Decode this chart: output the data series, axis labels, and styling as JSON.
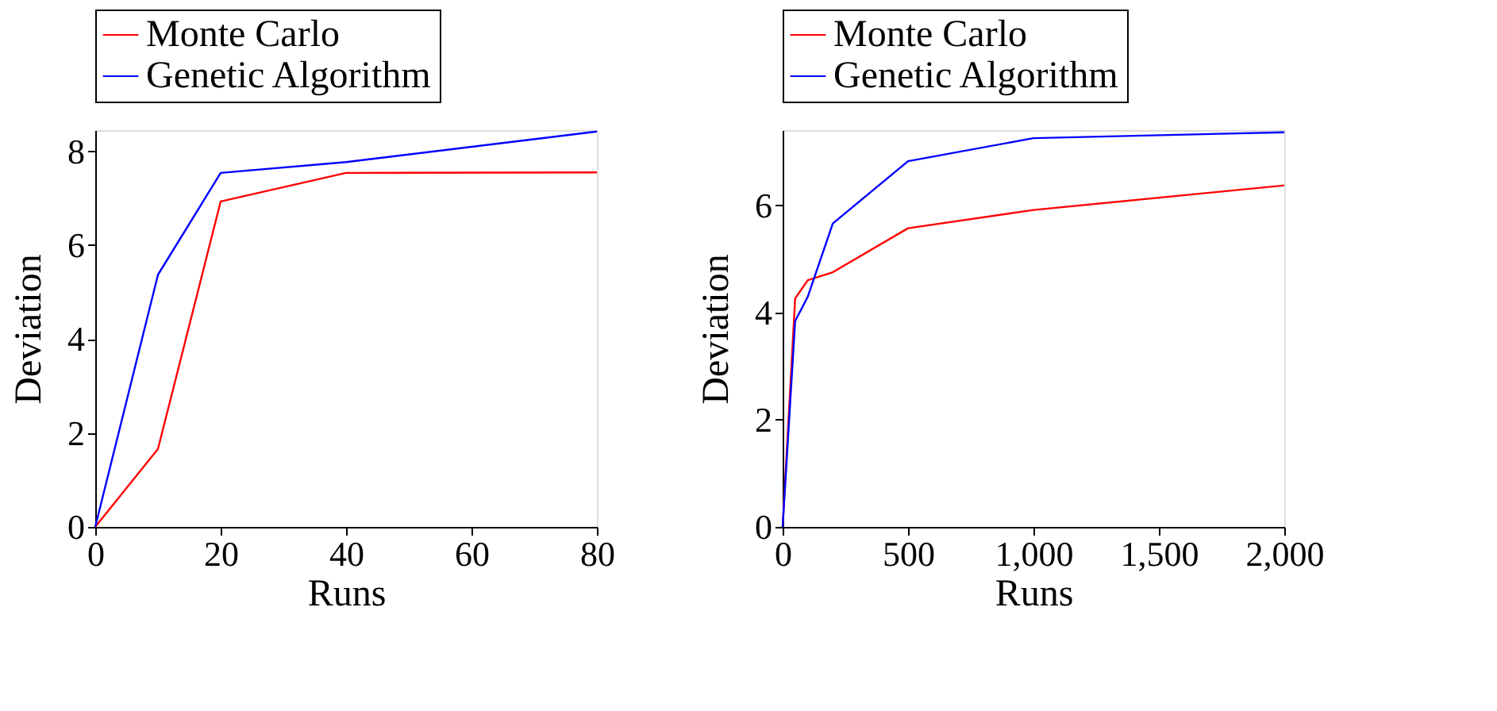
{
  "chart_data": [
    {
      "type": "line",
      "xlabel": "Runs",
      "ylabel": "Deviation",
      "x": [
        0,
        10,
        20,
        40,
        80
      ],
      "xlim": [
        0,
        80
      ],
      "xticks": [
        0,
        20,
        40,
        60,
        80
      ],
      "ylim": [
        0,
        8.45
      ],
      "yticks": [
        0,
        2,
        4,
        6,
        8
      ],
      "grid": false,
      "legend": "top",
      "marker": "none",
      "line_style": "solid",
      "series": [
        {
          "name": "Monte Carlo",
          "color": "#ff0000",
          "values": [
            0,
            1.66,
            6.93,
            7.54,
            7.55
          ]
        },
        {
          "name": "Genetic Algorithm",
          "color": "#0000ff",
          "values": [
            0,
            5.37,
            7.54,
            7.77,
            8.42
          ]
        }
      ]
    },
    {
      "type": "line",
      "xlabel": "Runs",
      "ylabel": "Deviation",
      "x": [
        0,
        50,
        100,
        200,
        500,
        1000,
        2000
      ],
      "xlim": [
        0,
        2000
      ],
      "xticks": [
        0,
        500,
        {
          "value": 1000,
          "label": "1,000"
        },
        {
          "value": 1500,
          "label": "1,500"
        },
        {
          "value": 2000,
          "label": "2,000"
        }
      ],
      "ylim": [
        0,
        7.4
      ],
      "yticks": [
        0,
        2,
        4,
        6
      ],
      "grid": false,
      "legend": "top",
      "marker": "none",
      "line_style": "solid",
      "series": [
        {
          "name": "Monte Carlo",
          "color": "#ff0000",
          "values": [
            0,
            4.26,
            4.6,
            4.75,
            5.57,
            5.91,
            6.37
          ]
        },
        {
          "name": "Genetic Algorithm",
          "color": "#0000ff",
          "values": [
            0,
            3.84,
            4.29,
            5.66,
            6.82,
            7.25,
            7.36
          ]
        }
      ]
    }
  ]
}
